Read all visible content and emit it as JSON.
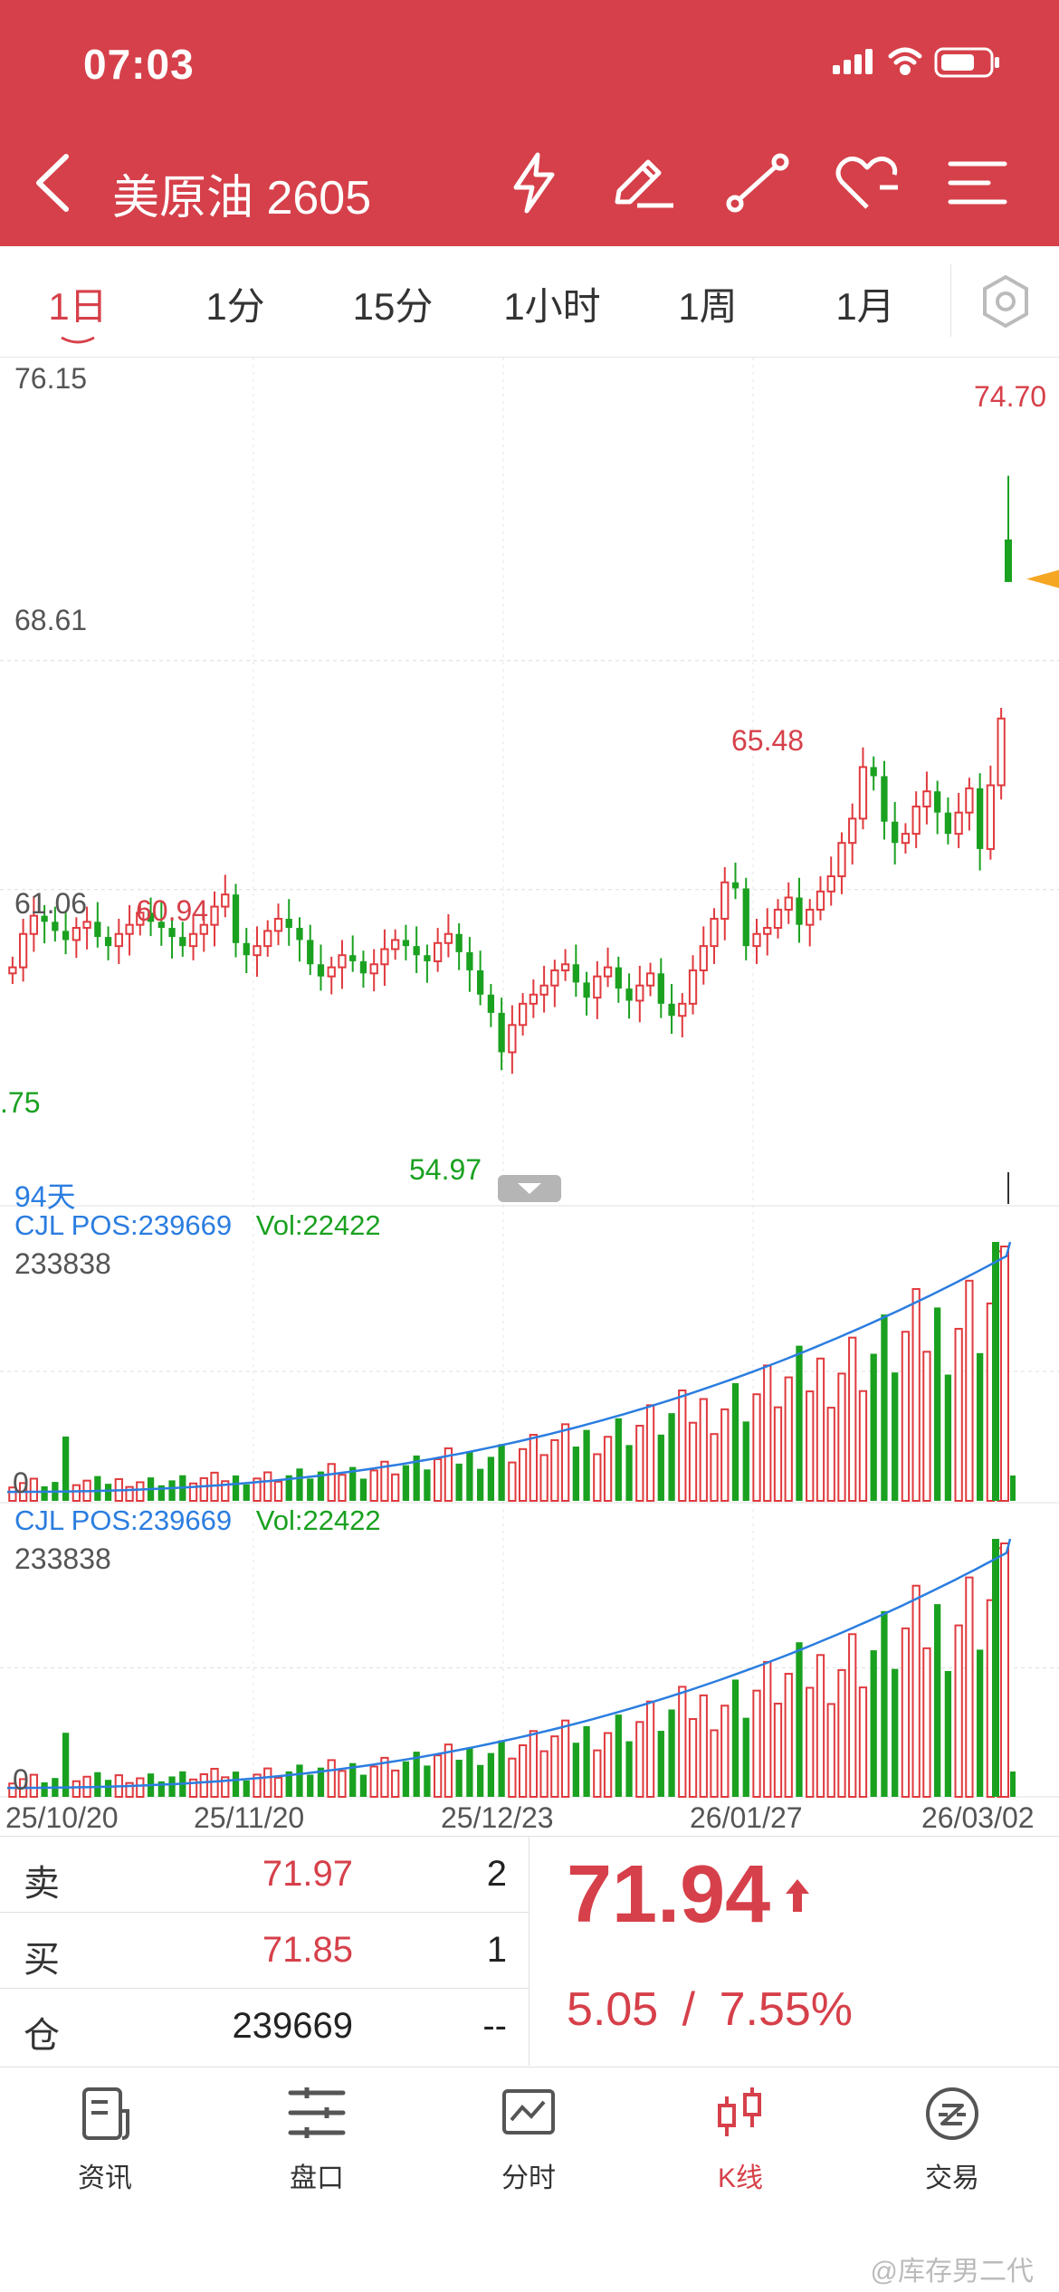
{
  "status": {
    "time": "07:03"
  },
  "header": {
    "title": "美原油 2605"
  },
  "periods": [
    {
      "label": "1日",
      "active": true
    },
    {
      "label": "1分"
    },
    {
      "label": "15分"
    },
    {
      "label": "1小时"
    },
    {
      "label": "1周"
    },
    {
      "label": "1月"
    }
  ],
  "main_chart": {
    "y_labels": [
      "76.15",
      "68.61",
      "61.06"
    ],
    "annotations": {
      "high_left": "60.94",
      "low_left": ".75",
      "low": "54.97",
      "high_mid": "65.48",
      "last_high": "74.70"
    },
    "days_label": "94天"
  },
  "volume_panels": [
    {
      "legend_pos": "CJL POS:239669",
      "legend_vol": "Vol:22422",
      "max_label": "233838",
      "zero_label": "0"
    },
    {
      "legend_pos": "CJL POS:239669",
      "legend_vol": "Vol:22422",
      "max_label": "233838",
      "zero_label": "0"
    }
  ],
  "dates": [
    "25/10/20",
    "25/11/20",
    "25/12/23",
    "26/01/27",
    "26/03/02"
  ],
  "quote": {
    "sell": {
      "label": "卖",
      "price": "71.97",
      "qty": "2"
    },
    "buy": {
      "label": "买",
      "price": "71.85",
      "qty": "1"
    },
    "oi": {
      "label": "仓",
      "value": "239669",
      "extra": "--"
    },
    "last_price": "71.94",
    "change": "5.05",
    "sep": "/",
    "change_pct": "7.55%"
  },
  "tabs": [
    {
      "label": "资讯",
      "icon": "news-icon"
    },
    {
      "label": "盘口",
      "icon": "orderbook-icon"
    },
    {
      "label": "分时",
      "icon": "timeshare-icon"
    },
    {
      "label": "K线",
      "icon": "candlestick-icon",
      "active": true
    },
    {
      "label": "交易",
      "icon": "trade-icon"
    }
  ],
  "watermark": "@库存男二代",
  "colors": {
    "brand": "#d6404a",
    "up": "#e03a3e",
    "down": "#1aa120",
    "ma": "#2b7de0",
    "marker": "#f5a623"
  },
  "chart_data": [
    {
      "type": "candlestick",
      "title": "",
      "y_axis_ticks": [
        76.15,
        68.61,
        61.06
      ],
      "ylim": [
        51.0,
        76.15
      ],
      "x_ticks": [
        "25/10/20",
        "25/11/20",
        "25/12/23",
        "26/01/27",
        "26/03/02"
      ],
      "highest_marked": 65.48,
      "lowest_marked": 54.97,
      "last_bar_high": 74.7,
      "series": [
        {
          "name": "",
          "closes": [
            58.5,
            59.6,
            60.2,
            60.0,
            59.7,
            59.4,
            59.8,
            60.0,
            59.5,
            59.2,
            59.6,
            59.9,
            60.3,
            60.0,
            59.8,
            59.5,
            59.2,
            59.6,
            59.9,
            60.5,
            60.9,
            59.3,
            58.9,
            59.2,
            59.7,
            60.1,
            59.8,
            59.4,
            58.6,
            58.2,
            58.5,
            58.9,
            58.7,
            58.3,
            58.6,
            59.1,
            59.4,
            59.2,
            58.9,
            58.7,
            59.3,
            59.6,
            59.0,
            58.4,
            57.6,
            57.0,
            55.7,
            56.6,
            57.3,
            57.6,
            57.9,
            58.4,
            58.6,
            58.0,
            57.5,
            58.2,
            58.5,
            57.8,
            57.4,
            57.9,
            58.3,
            57.3,
            56.9,
            57.3,
            58.4,
            59.2,
            60.1,
            61.3,
            61.1,
            59.2,
            59.6,
            59.8,
            60.4,
            60.8,
            59.9,
            60.4,
            61.0,
            61.5,
            62.6,
            63.4,
            65.1,
            64.8,
            63.3,
            62.6,
            62.9,
            63.8,
            64.3,
            63.6,
            62.9,
            63.6,
            64.4,
            62.4,
            64.5,
            66.7
          ]
        },
        {
          "name": "",
          "opens": []
        }
      ]
    },
    {
      "type": "bar",
      "title": "",
      "series": [
        {
          "name": "CJL",
          "last": 22422
        },
        {
          "name": "POS",
          "last": 239669
        }
      ],
      "max_label": 233838
    }
  ]
}
